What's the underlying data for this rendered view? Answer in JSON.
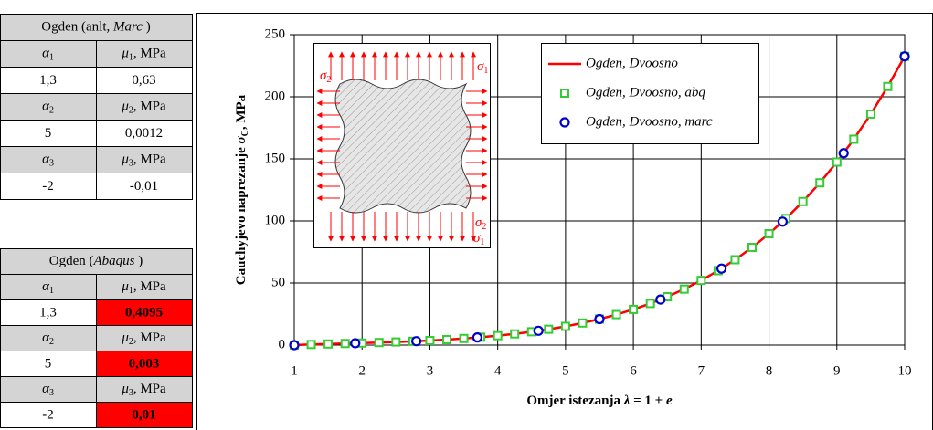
{
  "tables": [
    {
      "title": [
        "Ogden (anlt, ",
        "Marc",
        " )"
      ],
      "blocks": [
        {
          "header": [
            {
              "symbol": "α",
              "sub": "1"
            },
            {
              "symbol": "μ",
              "sub": "1",
              "unit": ", MPa"
            }
          ],
          "row": [
            "1,3",
            "0,63"
          ]
        },
        {
          "header": [
            {
              "symbol": "α",
              "sub": "2"
            },
            {
              "symbol": "μ",
              "sub": "2",
              "unit": ", MPa"
            }
          ],
          "row": [
            "5",
            "0,0012"
          ]
        },
        {
          "header": [
            {
              "symbol": "α",
              "sub": "3"
            },
            {
              "symbol": "μ",
              "sub": "3",
              "unit": ", MPa"
            }
          ],
          "row": [
            "-2",
            "-0,01"
          ]
        }
      ]
    },
    {
      "title": [
        "Ogden (",
        "Abaqus",
        " )"
      ],
      "highlight_color": "#ff0000",
      "blocks": [
        {
          "header": [
            {
              "symbol": "α",
              "sub": "1"
            },
            {
              "symbol": "μ",
              "sub": "1",
              "unit": ", MPa"
            }
          ],
          "row": [
            "1,3",
            "0,4095"
          ]
        },
        {
          "header": [
            {
              "symbol": "α",
              "sub": "2"
            },
            {
              "symbol": "μ",
              "sub": "2",
              "unit": ", MPa"
            }
          ],
          "row": [
            "5",
            "0,003"
          ]
        },
        {
          "header": [
            {
              "symbol": "α",
              "sub": "3"
            },
            {
              "symbol": "μ",
              "sub": "3",
              "unit": ", MPa"
            }
          ],
          "row": [
            "-2",
            "0,01"
          ]
        }
      ]
    }
  ],
  "inset": {
    "labels": [
      {
        "symbol": "σ",
        "sub": "1"
      },
      {
        "symbol": "σ",
        "sub": "2"
      },
      {
        "symbol": "σ",
        "sub": "2"
      },
      {
        "symbol": "σ",
        "sub": "1"
      }
    ],
    "color": "#ff0000"
  },
  "chart_data": {
    "type": "line",
    "x_label": [
      "Omjer istezanja ",
      "λ",
      " = 1 + ",
      "e"
    ],
    "y_label": [
      "Cauchyjevo naprezanje ",
      "σ",
      "C",
      ", MPa"
    ],
    "xlim": [
      1,
      10
    ],
    "xticks": [
      1,
      2,
      3,
      4,
      5,
      6,
      7,
      8,
      9,
      10
    ],
    "ylim": [
      0,
      250
    ],
    "yticks": [
      0,
      50,
      100,
      150,
      200,
      250
    ],
    "grid": true,
    "legend": "top",
    "series": [
      {
        "name": "Ogden, Dvoosno",
        "color": "#ff0000",
        "marker": "line",
        "x": [
          1,
          1.25,
          1.5,
          1.75,
          2,
          2.25,
          2.5,
          2.75,
          3,
          3.25,
          3.5,
          3.75,
          4,
          4.25,
          4.5,
          4.75,
          5,
          5.25,
          5.5,
          5.75,
          6,
          6.25,
          6.5,
          6.75,
          7,
          7.25,
          7.5,
          7.75,
          8,
          8.25,
          8.5,
          8.75,
          9,
          9.25,
          9.5,
          9.75,
          10
        ],
        "values": [
          0,
          0.51,
          0.9,
          1.27,
          1.64,
          2.05,
          2.52,
          3.06,
          3.69,
          4.44,
          5.32,
          6.36,
          7.59,
          9.04,
          10.75,
          12.76,
          15.1,
          17.81,
          20.96,
          24.59,
          28.76,
          33.52,
          38.95,
          45.11,
          52.08,
          59.94,
          68.76,
          78.65,
          89.68,
          101.97,
          115.62,
          130.73,
          147.43,
          165.83,
          186.06,
          208.26,
          232.56
        ]
      },
      {
        "name": "Ogden, Dvoosno, abq",
        "color": "#33cc33",
        "marker": "square",
        "x": [
          1,
          1.25,
          1.5,
          1.75,
          2,
          2.25,
          2.5,
          2.75,
          3,
          3.25,
          3.5,
          3.75,
          4,
          4.25,
          4.5,
          4.75,
          5,
          5.25,
          5.5,
          5.75,
          6,
          6.25,
          6.5,
          6.75,
          7,
          7.25,
          7.5,
          7.75,
          8,
          8.25,
          8.5,
          8.75,
          9,
          9.25,
          9.5,
          9.75,
          10
        ],
        "values": [
          0,
          0.51,
          0.9,
          1.27,
          1.64,
          2.05,
          2.52,
          3.06,
          3.69,
          4.44,
          5.32,
          6.36,
          7.59,
          9.04,
          10.75,
          12.76,
          15.1,
          17.81,
          20.96,
          24.59,
          28.76,
          33.52,
          38.95,
          45.11,
          52.08,
          59.94,
          68.76,
          78.65,
          89.68,
          101.97,
          115.62,
          130.73,
          147.43,
          165.83,
          186.06,
          208.26,
          232.56
        ]
      },
      {
        "name": "Ogden, Dvoosno, marc",
        "color": "#0000cc",
        "marker": "circle",
        "x": [
          1,
          1.9,
          2.8,
          3.7,
          4.6,
          5.5,
          6.4,
          7.3,
          8.2,
          9.1,
          10
        ],
        "values": [
          0,
          1.49,
          3.18,
          6.14,
          11.52,
          20.96,
          36.69,
          61.62,
          99.41,
          154.57,
          232.56
        ]
      }
    ]
  }
}
